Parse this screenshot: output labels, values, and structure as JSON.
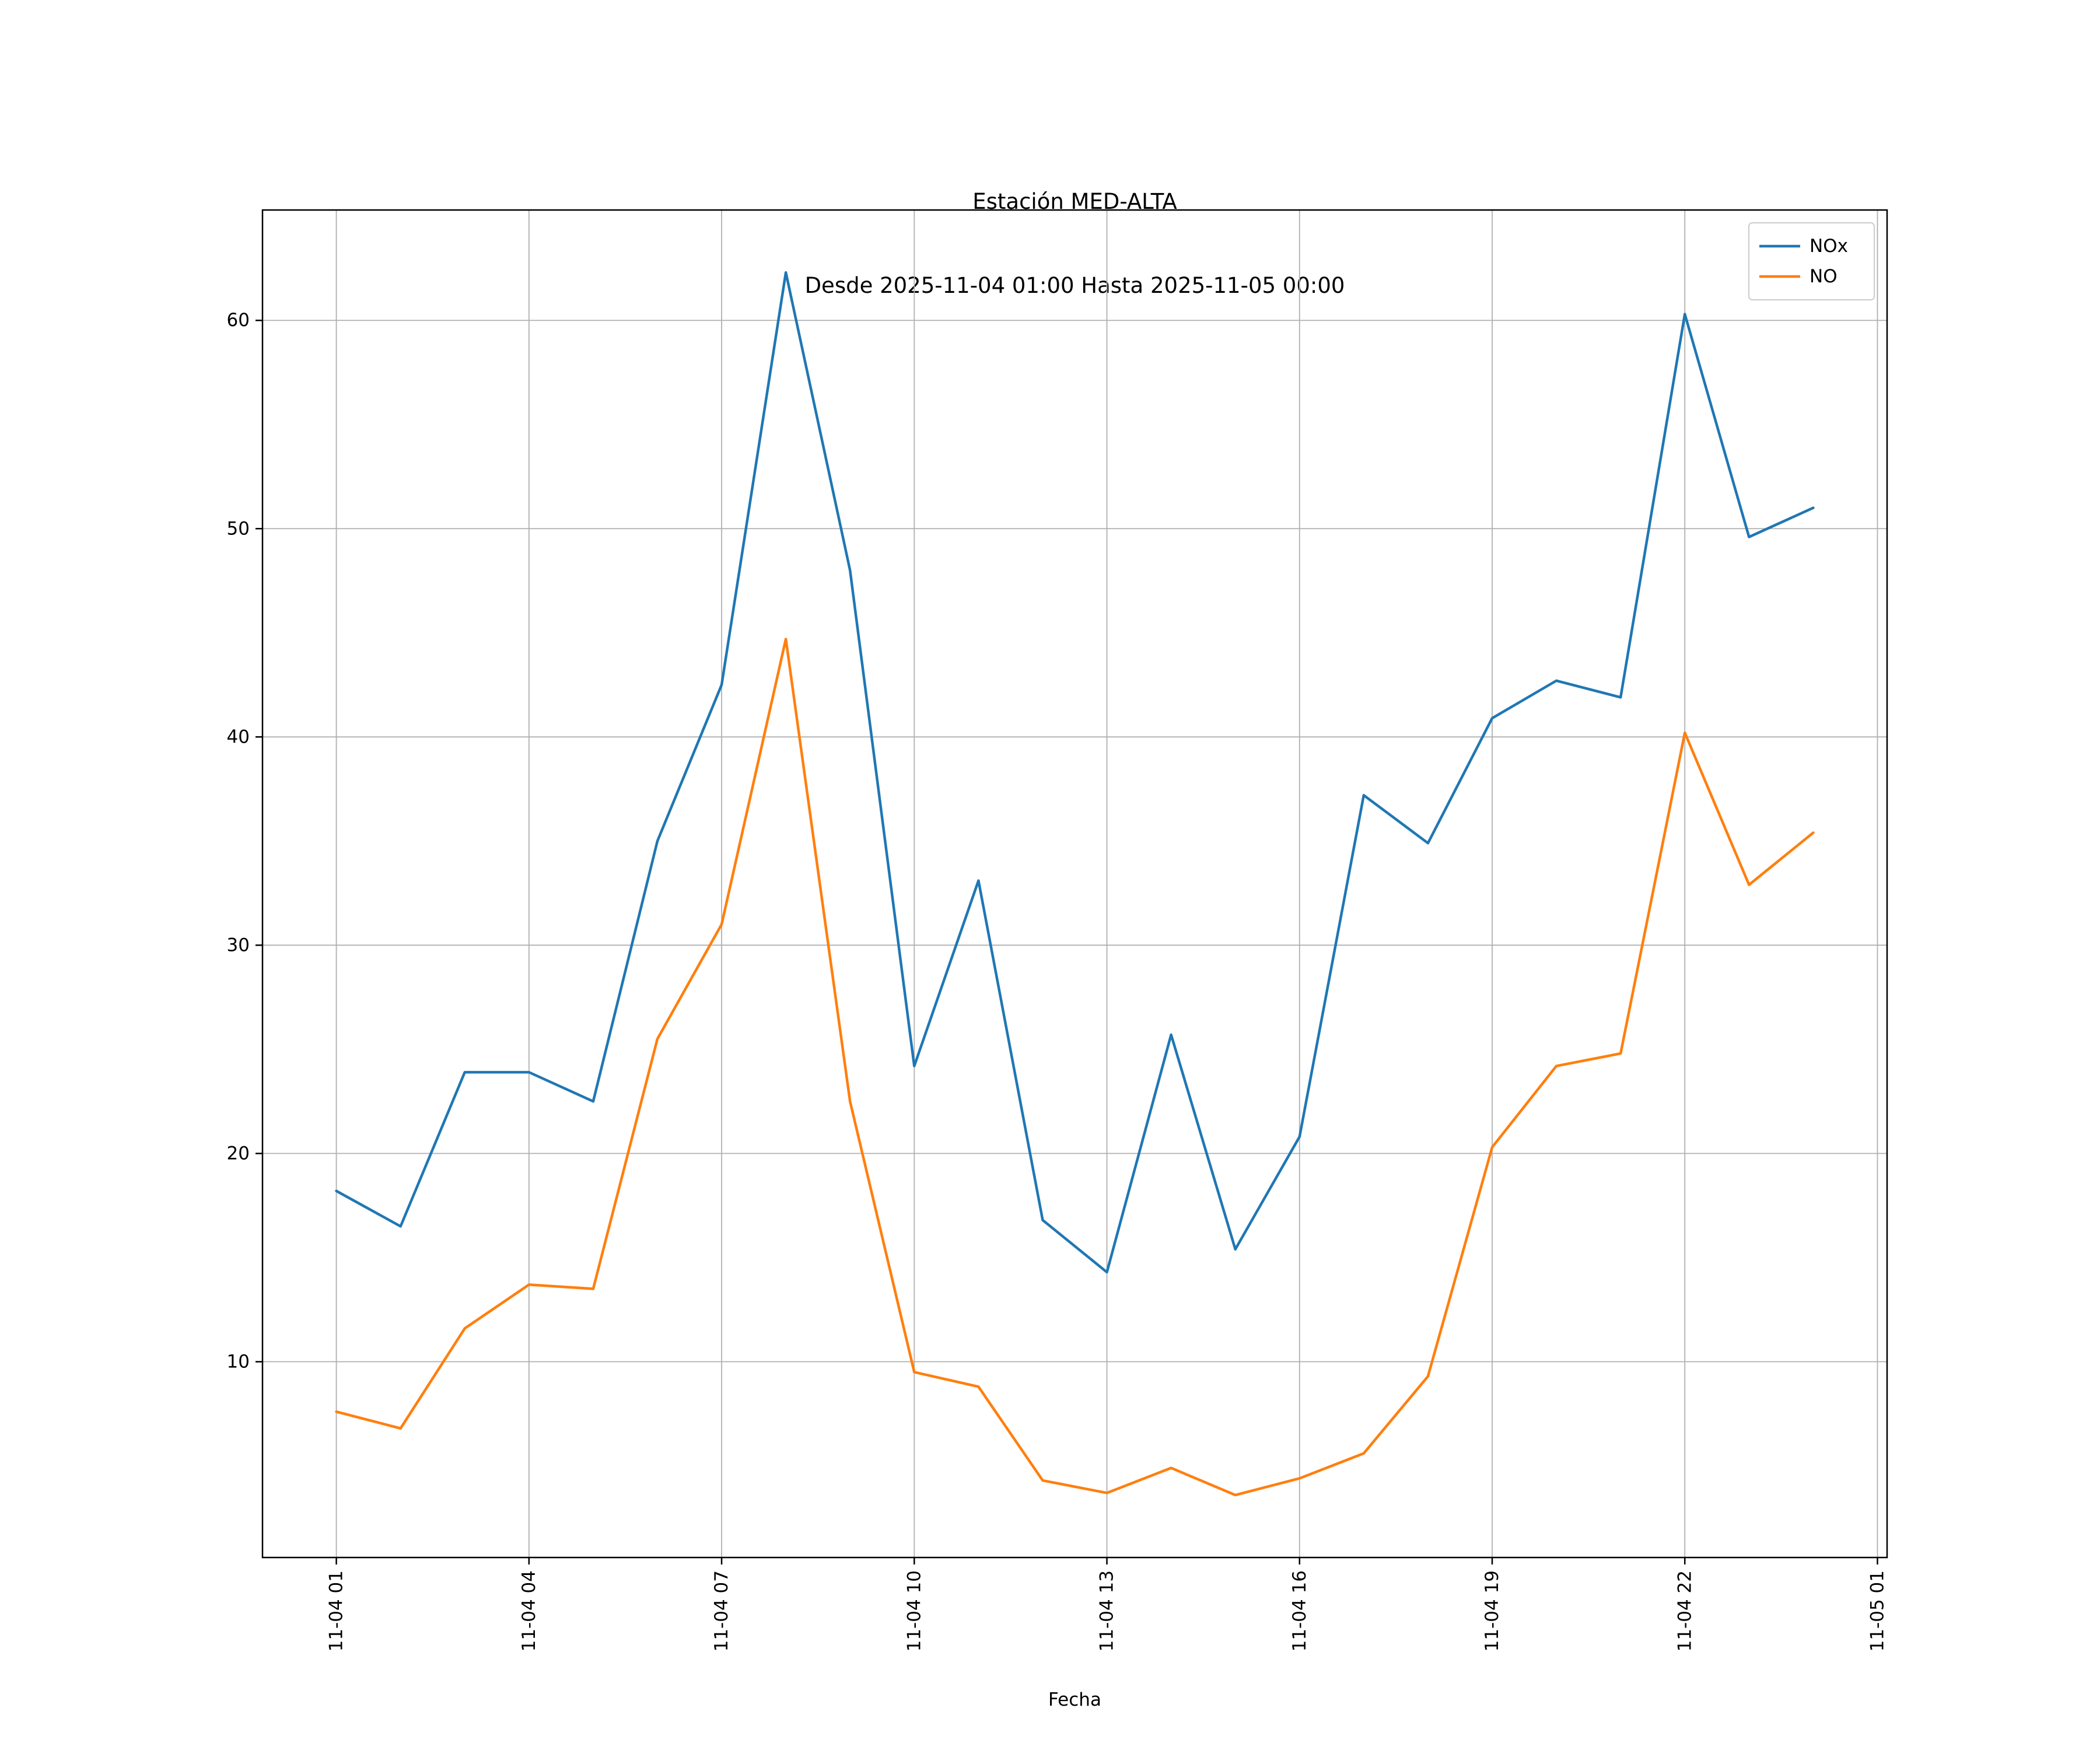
{
  "chart": {
    "title": "Estación MED-ALTA",
    "subtitle": "Desde 2025-11-04 01:00 Hasta 2025-11-05 00:00",
    "xlabel": "Fecha"
  },
  "chart_data": {
    "type": "line",
    "title": "Estación MED-ALTA",
    "subtitle": "Desde 2025-11-04 01:00 Hasta 2025-11-05 00:00",
    "xlabel": "Fecha",
    "ylabel": "",
    "x_hours": [
      1,
      2,
      3,
      4,
      5,
      6,
      7,
      8,
      9,
      10,
      11,
      12,
      13,
      14,
      15,
      16,
      17,
      18,
      19,
      20,
      21,
      22,
      23,
      24
    ],
    "series": [
      {
        "name": "NOx",
        "color": "#1f77b4",
        "values": [
          18.2,
          16.5,
          23.9,
          23.9,
          22.5,
          35.0,
          42.5,
          62.3,
          48.0,
          24.2,
          33.1,
          16.8,
          14.3,
          25.7,
          15.4,
          20.8,
          37.2,
          34.9,
          40.9,
          42.7,
          41.9,
          60.3,
          49.6,
          51.0
        ]
      },
      {
        "name": "NO",
        "color": "#ff7f0e",
        "values": [
          7.6,
          6.8,
          11.6,
          13.7,
          13.5,
          25.5,
          31.0,
          44.7,
          22.5,
          9.5,
          8.8,
          4.3,
          3.7,
          4.9,
          3.6,
          4.4,
          5.6,
          9.3,
          20.3,
          24.2,
          24.8,
          40.2,
          32.9,
          35.4
        ]
      }
    ],
    "xlim": [
      -0.15,
      25.15
    ],
    "ylim": [
      0.6,
      65.3
    ],
    "yticks": [
      10,
      20,
      30,
      40,
      50,
      60
    ],
    "xticks": [
      {
        "value": 1,
        "label": "11-04 01"
      },
      {
        "value": 4,
        "label": "11-04 04"
      },
      {
        "value": 7,
        "label": "11-04 07"
      },
      {
        "value": 10,
        "label": "11-04 10"
      },
      {
        "value": 13,
        "label": "11-04 13"
      },
      {
        "value": 16,
        "label": "11-04 16"
      },
      {
        "value": 19,
        "label": "11-04 19"
      },
      {
        "value": 22,
        "label": "11-04 22"
      },
      {
        "value": 25,
        "label": "11-05 01"
      }
    ],
    "grid": true,
    "grid_color": "#b0b0b0",
    "axis_color": "#000000",
    "legend_position": "upper right",
    "legend_entries": [
      "NOx",
      "NO"
    ]
  }
}
